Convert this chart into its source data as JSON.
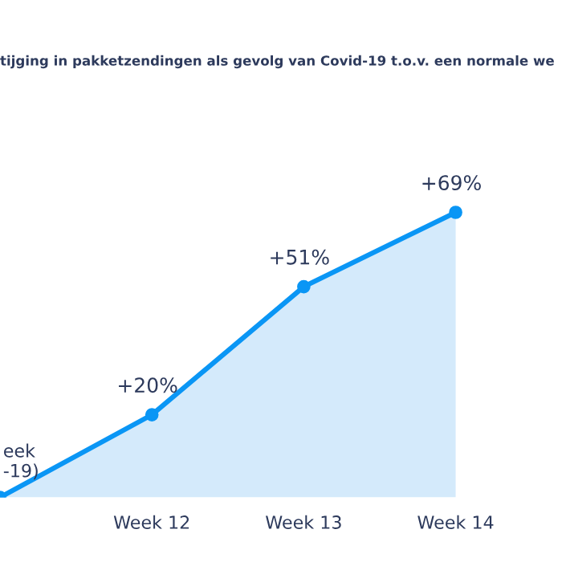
{
  "chart_data": {
    "type": "area",
    "title": "tijging in pakketzendingen als gevolg van Covid-19 t.o.v. een normale we",
    "categories": [
      null,
      "Week 12",
      "Week 13",
      "Week 14"
    ],
    "series": [
      {
        "color": "#0a96f5",
        "values": [
          0,
          20,
          51,
          69
        ],
        "value_labels": [
          null,
          "+20%",
          "+51%",
          "+69%"
        ]
      }
    ],
    "annotations": [
      "eek\n-19)"
    ],
    "marker": "circle",
    "grid": false,
    "legend": false
  }
}
